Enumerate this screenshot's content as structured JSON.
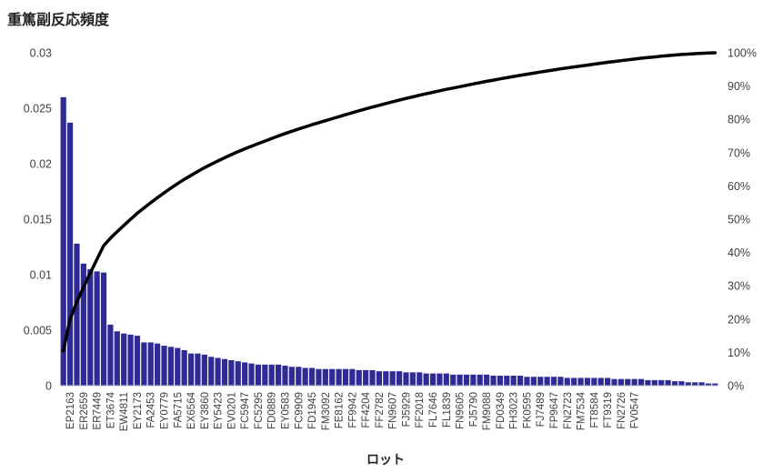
{
  "chart_data": {
    "type": "bar",
    "title": "重篤副反応頻度",
    "xlabel": "ロット",
    "ylabel": "",
    "ylim": [
      0,
      0.03
    ],
    "y_ticks": [
      "0",
      "0.005",
      "0.01",
      "0.015",
      "0.02",
      "0.025",
      "0.03"
    ],
    "y2lim": [
      0,
      1
    ],
    "y2_ticks": [
      "0%",
      "10%",
      "20%",
      "30%",
      "40%",
      "50%",
      "60%",
      "70%",
      "80%",
      "90%",
      "100%"
    ],
    "grid": false,
    "colors": {
      "bar": "#2e2a96",
      "line": "#000000"
    },
    "visible_category_labels": [
      "EP2163",
      "ER2659",
      "ER7449",
      "ET3674",
      "EW4811",
      "EY2173",
      "FA2453",
      "EY0779",
      "FA5715",
      "EX6564",
      "EY3860",
      "EY5423",
      "EV0201",
      "FC5947",
      "FC5295",
      "FD0889",
      "EY0583",
      "FC9909",
      "FD1945",
      "FM3092",
      "FE8162",
      "FF9942",
      "FF4204",
      "FF2782",
      "FN9607",
      "FJ5929",
      "FF2018",
      "FL7646",
      "FL1839",
      "FN9605",
      "FJ5790",
      "FM9088",
      "FD0349",
      "FH3023",
      "FK0595",
      "FJ7489",
      "FP9647",
      "FN2723",
      "FM7534",
      "FT8584",
      "FT9319",
      "FN2726",
      "FV0547"
    ],
    "values": [
      0.026,
      0.0237,
      0.0128,
      0.011,
      0.0105,
      0.0103,
      0.0102,
      0.0055,
      0.0049,
      0.0047,
      0.0046,
      0.0045,
      0.0039,
      0.0039,
      0.0038,
      0.0036,
      0.0035,
      0.0034,
      0.0032,
      0.0029,
      0.0029,
      0.0028,
      0.0026,
      0.0025,
      0.0024,
      0.0023,
      0.0022,
      0.0021,
      0.002,
      0.0019,
      0.0019,
      0.0019,
      0.0019,
      0.0018,
      0.0017,
      0.0017,
      0.0016,
      0.0016,
      0.0015,
      0.0015,
      0.0015,
      0.0015,
      0.0015,
      0.0015,
      0.0014,
      0.0014,
      0.0014,
      0.0013,
      0.0013,
      0.0013,
      0.0013,
      0.0012,
      0.0012,
      0.0012,
      0.0011,
      0.0011,
      0.0011,
      0.0011,
      0.001,
      0.001,
      0.001,
      0.001,
      0.001,
      0.001,
      0.0009,
      0.0009,
      0.0009,
      0.0009,
      0.0009,
      0.0008,
      0.0008,
      0.0008,
      0.0008,
      0.0008,
      0.0008,
      0.0007,
      0.0007,
      0.0007,
      0.0007,
      0.0007,
      0.0007,
      0.0007,
      0.0006,
      0.0006,
      0.0006,
      0.0006,
      0.0006,
      0.0005,
      0.0005,
      0.0005,
      0.0005,
      0.0004,
      0.0004,
      0.0003,
      0.0003,
      0.0003,
      0.0002,
      0.0002
    ]
  }
}
